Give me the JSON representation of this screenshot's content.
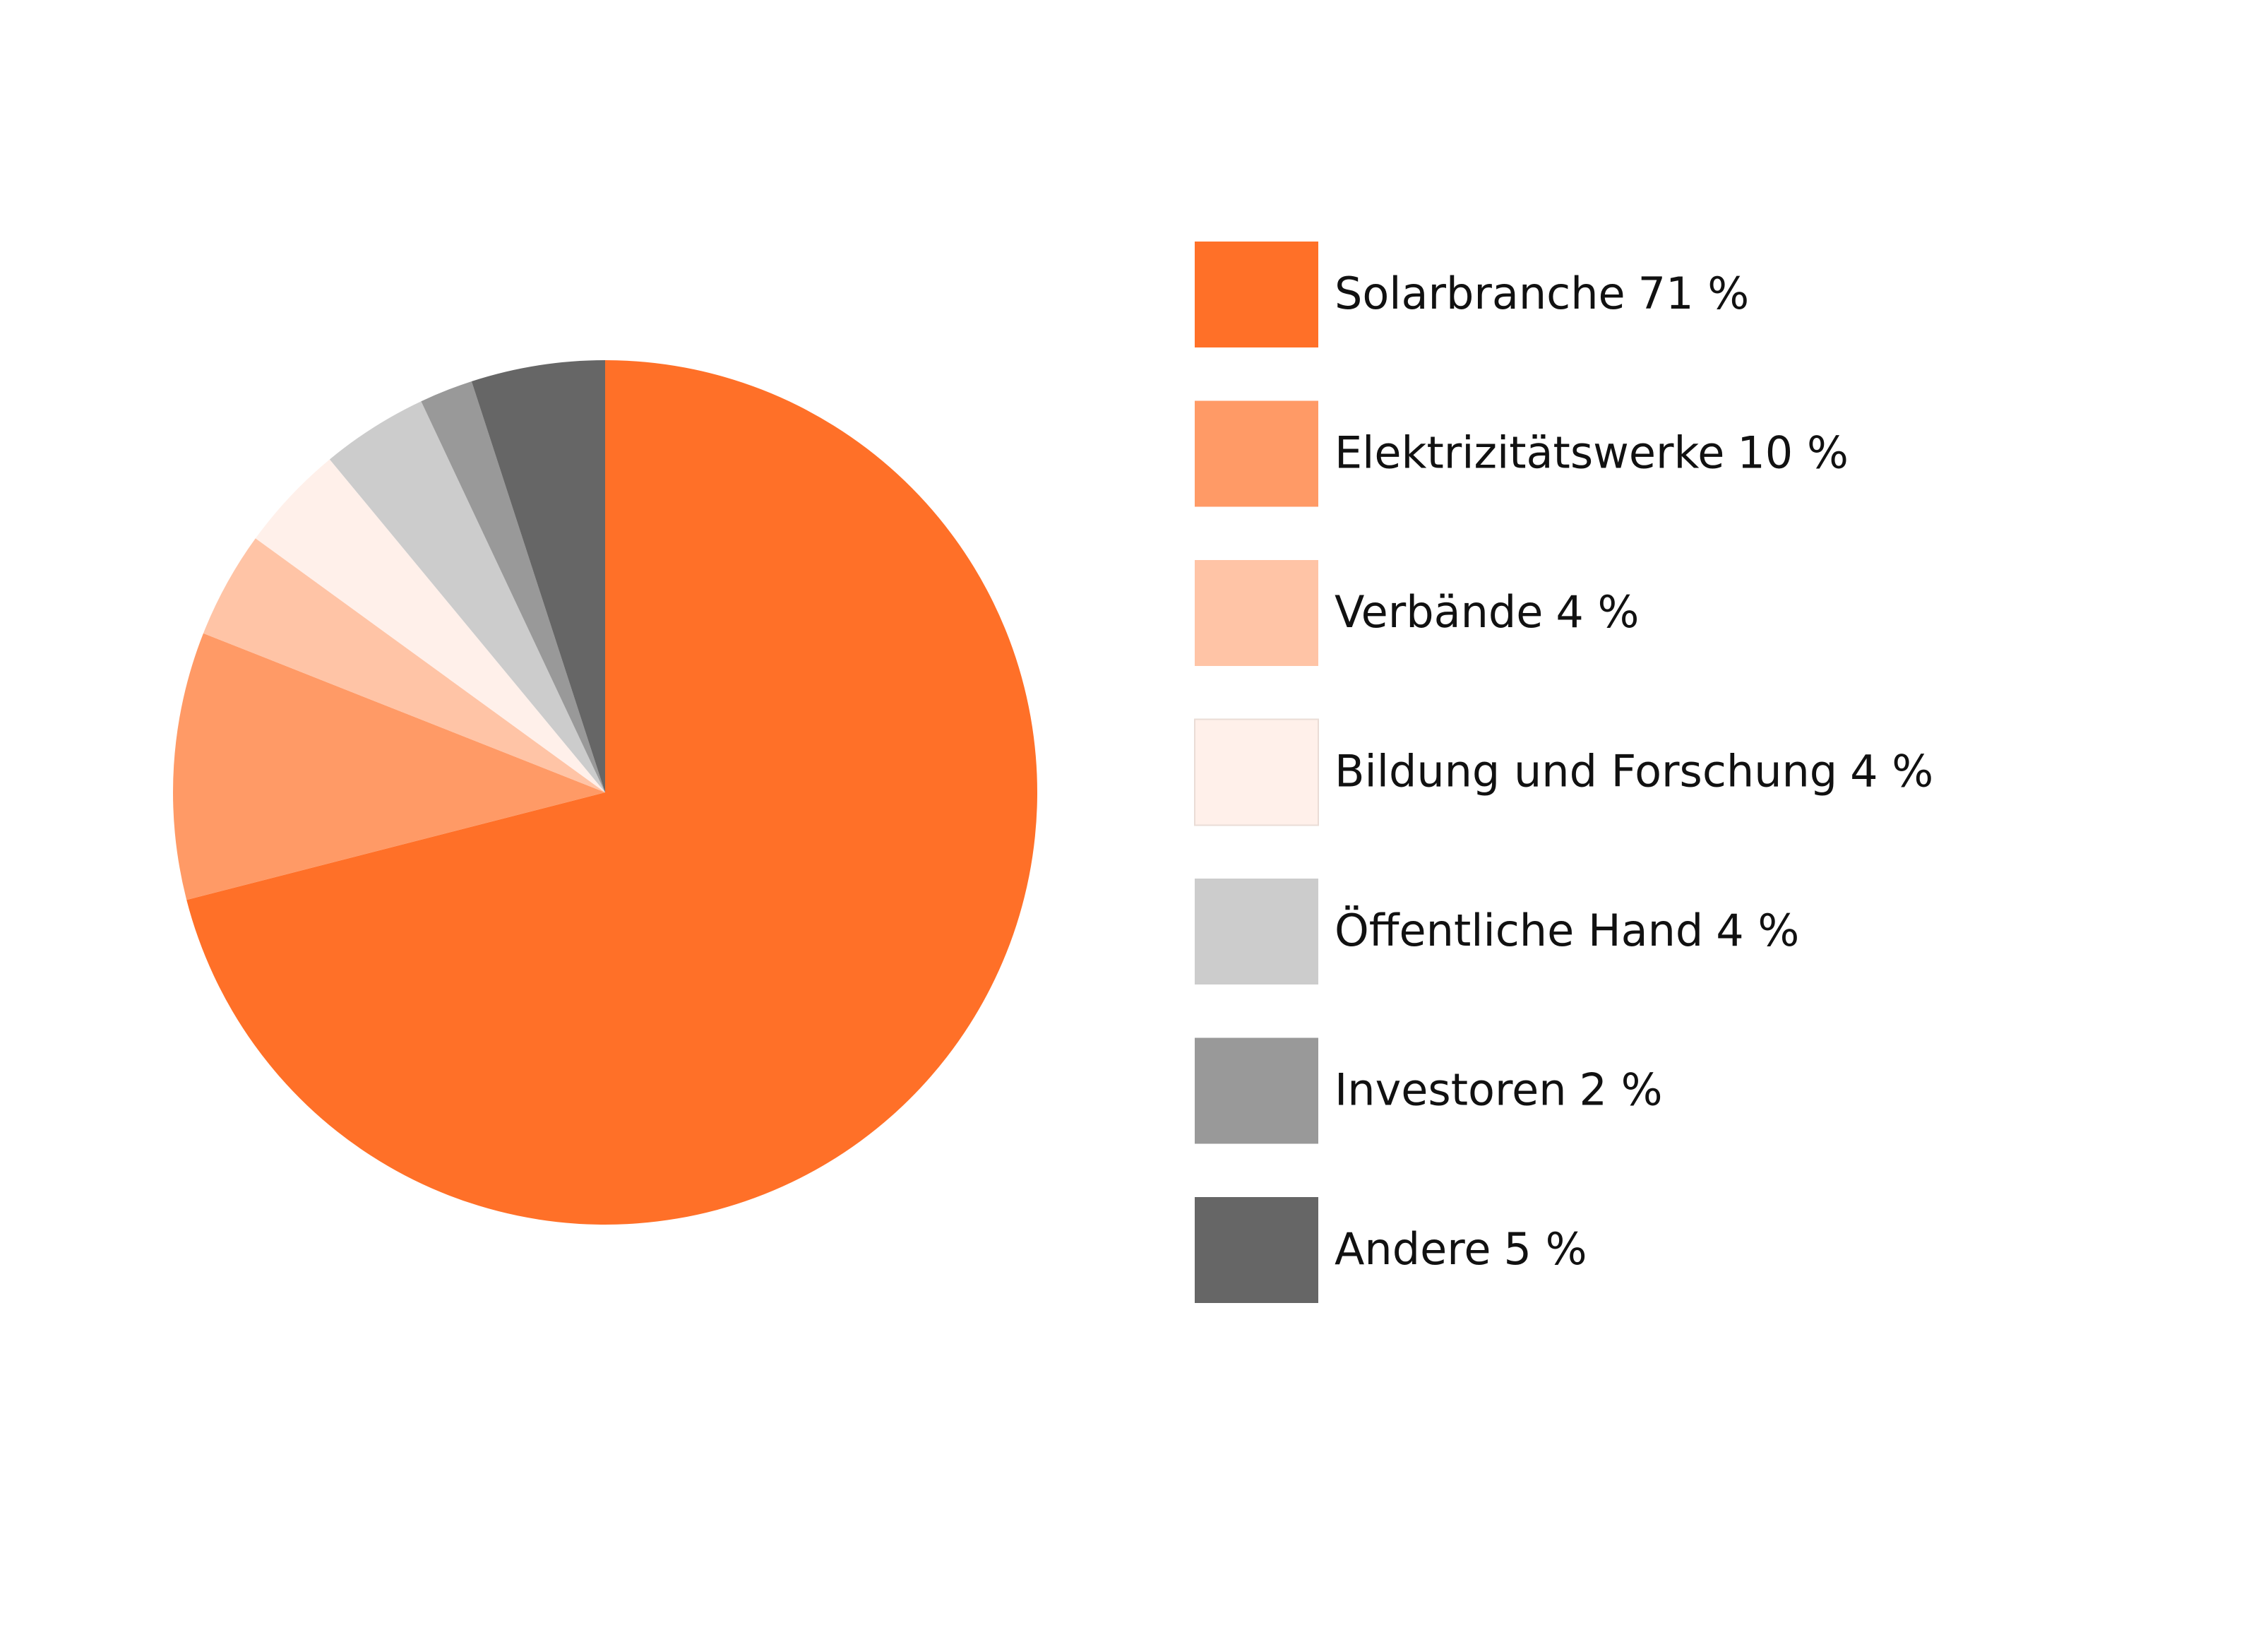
{
  "chart_data": {
    "type": "pie",
    "categories": [
      "Solarbranche",
      "Elektrizitätswerke",
      "Verbände",
      "Bildung und Forschung",
      "Öffentliche Hand",
      "Investoren",
      "Andere"
    ],
    "values": [
      71,
      10,
      4,
      4,
      4,
      2,
      5
    ],
    "value_labels": [
      "71 %",
      "10 %",
      "4 %",
      "4 %",
      "4 %",
      "2 %",
      "5 %"
    ],
    "colors": [
      "#ff7028",
      "#ff9a66",
      "#ffc4a6",
      "#fff0ea",
      "#cccccc",
      "#999999",
      "#666666"
    ],
    "legend": "right"
  }
}
